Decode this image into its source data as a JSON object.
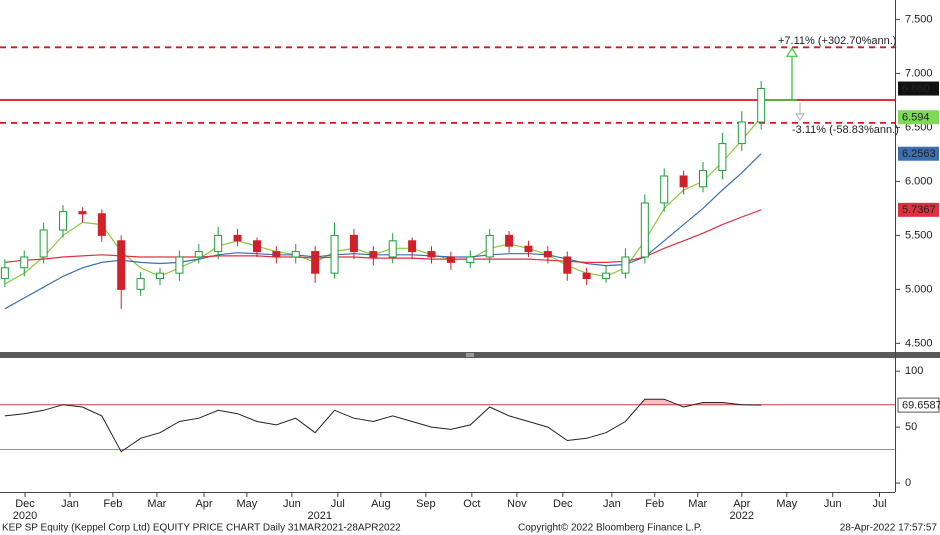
{
  "chart_data": [
    {
      "type": "candlestick",
      "x": [
        0,
        1,
        2,
        3,
        4,
        5,
        6,
        7,
        8,
        9,
        10,
        11,
        12,
        13,
        14,
        15,
        16,
        17,
        18,
        19,
        20,
        21,
        22,
        23,
        24,
        25,
        26,
        27,
        28,
        29,
        30,
        31,
        32,
        33,
        34,
        35,
        36,
        37,
        38,
        39
      ],
      "xlim": [
        -0.25,
        45.9
      ],
      "ylim": [
        4.42,
        7.68
      ],
      "yticks": [
        {
          "value": 4.5,
          "label": "4.500"
        },
        {
          "value": 5,
          "label": "5.000"
        },
        {
          "value": 5.5,
          "label": "5.500"
        },
        {
          "value": 6,
          "label": "6.000"
        },
        {
          "value": 6.5,
          "label": "6.500"
        },
        {
          "value": 7,
          "label": "7.000"
        },
        {
          "value": 7.5,
          "label": "7.500"
        }
      ],
      "candles": {
        "open": [
          5.1,
          5.2,
          5.3,
          5.55,
          5.72,
          5.7,
          5.45,
          5.0,
          5.1,
          5.15,
          5.3,
          5.35,
          5.5,
          5.45,
          5.35,
          5.3,
          5.35,
          5.15,
          5.5,
          5.35,
          5.3,
          5.45,
          5.35,
          5.3,
          5.25,
          5.3,
          5.5,
          5.4,
          5.35,
          5.3,
          5.15,
          5.1,
          5.15,
          5.3,
          5.8,
          6.05,
          5.95,
          6.1,
          6.35,
          6.55
        ],
        "high": [
          5.28,
          5.36,
          5.62,
          5.78,
          5.76,
          5.74,
          5.5,
          5.16,
          5.2,
          5.36,
          5.42,
          5.58,
          5.56,
          5.48,
          5.4,
          5.42,
          5.4,
          5.62,
          5.56,
          5.4,
          5.52,
          5.48,
          5.4,
          5.35,
          5.36,
          5.56,
          5.54,
          5.45,
          5.4,
          5.35,
          5.2,
          5.22,
          5.38,
          5.88,
          6.12,
          6.1,
          6.18,
          6.45,
          6.65,
          6.93
        ],
        "low": [
          5.02,
          5.12,
          5.24,
          5.48,
          5.62,
          5.44,
          4.82,
          4.94,
          5.04,
          5.08,
          5.24,
          5.28,
          5.4,
          5.3,
          5.24,
          5.24,
          5.06,
          5.1,
          5.28,
          5.22,
          5.24,
          5.28,
          5.24,
          5.18,
          5.2,
          5.24,
          5.34,
          5.3,
          5.24,
          5.08,
          5.04,
          5.06,
          5.1,
          5.24,
          5.72,
          5.88,
          5.9,
          6.02,
          6.28,
          6.48
        ],
        "close": [
          5.2,
          5.3,
          5.55,
          5.72,
          5.7,
          5.5,
          5.0,
          5.1,
          5.15,
          5.3,
          5.35,
          5.5,
          5.45,
          5.35,
          5.3,
          5.35,
          5.15,
          5.5,
          5.35,
          5.3,
          5.45,
          5.35,
          5.3,
          5.25,
          5.3,
          5.5,
          5.4,
          5.35,
          5.3,
          5.15,
          5.1,
          5.15,
          5.3,
          5.8,
          6.05,
          5.95,
          6.1,
          6.35,
          6.55,
          6.86
        ],
        "up_color": "#1a9e3a",
        "down_color": "#d0202a",
        "last_label": "6.860",
        "label_color": "#111",
        "label_text_color": "#fff"
      },
      "series": [
        {
          "color": "#8cc63f",
          "label_color": "#7ed957",
          "label_text_color": "#000",
          "last_label": "6.594",
          "values": [
            5.05,
            5.15,
            5.3,
            5.5,
            5.62,
            5.6,
            5.35,
            5.2,
            5.12,
            5.2,
            5.28,
            5.4,
            5.45,
            5.4,
            5.35,
            5.32,
            5.25,
            5.35,
            5.38,
            5.32,
            5.38,
            5.38,
            5.32,
            5.28,
            5.28,
            5.38,
            5.42,
            5.38,
            5.32,
            5.22,
            5.15,
            5.12,
            5.2,
            5.45,
            5.75,
            5.92,
            6.0,
            6.18,
            6.38,
            6.594
          ]
        },
        {
          "color": "#3a6fb0",
          "label_color": "#3a6fb0",
          "label_text_color": "#fff",
          "last_label": "6.2563",
          "values": [
            4.82,
            4.92,
            5.02,
            5.12,
            5.2,
            5.25,
            5.27,
            5.25,
            5.24,
            5.25,
            5.28,
            5.32,
            5.34,
            5.33,
            5.32,
            5.32,
            5.3,
            5.32,
            5.33,
            5.32,
            5.32,
            5.32,
            5.31,
            5.3,
            5.3,
            5.32,
            5.33,
            5.33,
            5.32,
            5.28,
            5.24,
            5.22,
            5.23,
            5.3,
            5.45,
            5.6,
            5.75,
            5.92,
            6.08,
            6.2563
          ]
        },
        {
          "color": "#e03040",
          "label_color": "#e03040",
          "label_text_color": "#fff",
          "last_label": "5.7367",
          "values": [
            5.25,
            5.27,
            5.28,
            5.3,
            5.31,
            5.32,
            5.31,
            5.3,
            5.3,
            5.3,
            5.3,
            5.31,
            5.31,
            5.31,
            5.3,
            5.3,
            5.29,
            5.3,
            5.3,
            5.29,
            5.29,
            5.29,
            5.28,
            5.28,
            5.28,
            5.28,
            5.28,
            5.28,
            5.27,
            5.26,
            5.25,
            5.25,
            5.26,
            5.3,
            5.38,
            5.45,
            5.52,
            5.6,
            5.67,
            5.7367
          ]
        }
      ],
      "hlines": [
        {
          "value": 7.242,
          "style": "dashed"
        },
        {
          "value": 6.754,
          "style": "solid"
        },
        {
          "value": 6.542,
          "style": "dashed"
        }
      ],
      "hline_color": "#e01020",
      "annotations": [
        {
          "text": "+7.11% (+302.70%ann.)",
          "color": "#3ec43e"
        },
        {
          "text": "-3.11% (-58.83%ann.)",
          "color": "#aaaaaa"
        }
      ]
    },
    {
      "type": "line",
      "x": [
        0,
        1,
        2,
        3,
        4,
        5,
        6,
        7,
        8,
        9,
        10,
        11,
        12,
        13,
        14,
        15,
        16,
        17,
        18,
        19,
        20,
        21,
        22,
        23,
        24,
        25,
        26,
        27,
        28,
        29,
        30,
        31,
        32,
        33,
        34,
        35,
        36,
        37,
        38,
        39
      ],
      "xlim": [
        -0.25,
        45.9
      ],
      "ylim": [
        -8,
        110
      ],
      "yticks": [
        0,
        50,
        100
      ],
      "series": [
        {
          "color": "#222222",
          "last_label": "69.6587",
          "values": [
            60,
            62,
            65,
            70,
            68,
            60,
            28,
            40,
            45,
            55,
            58,
            65,
            62,
            55,
            52,
            58,
            45,
            65,
            58,
            55,
            60,
            55,
            50,
            48,
            52,
            68,
            60,
            55,
            50,
            38,
            40,
            45,
            55,
            75,
            75,
            68,
            72,
            72,
            70,
            69.6587
          ]
        }
      ],
      "hlines": [
        {
          "value": 70,
          "color": "#d04040"
        },
        {
          "value": 30,
          "color": "#50c050"
        }
      ],
      "overbought_fill": "#f4c0c0",
      "xticks": [
        {
          "value": 1.04,
          "label": "Dec"
        },
        {
          "value": 3.36,
          "label": "Jan"
        },
        {
          "value": 5.57,
          "label": "Feb"
        },
        {
          "value": 7.84,
          "label": "Mar"
        },
        {
          "value": 10.27,
          "label": "Apr"
        },
        {
          "value": 12.48,
          "label": "May"
        },
        {
          "value": 14.8,
          "label": "Jun"
        },
        {
          "value": 17.17,
          "label": "Jul"
        },
        {
          "value": 19.39,
          "label": "Aug"
        },
        {
          "value": 21.71,
          "label": "Sep"
        },
        {
          "value": 24.08,
          "label": "Oct"
        },
        {
          "value": 26.4,
          "label": "Nov"
        },
        {
          "value": 28.77,
          "label": "Dec"
        },
        {
          "value": 31.3,
          "label": "Jan"
        },
        {
          "value": 33.51,
          "label": "Feb"
        },
        {
          "value": 35.73,
          "label": "Mar"
        },
        {
          "value": 38.0,
          "label": "Apr"
        },
        {
          "value": 40.32,
          "label": "May"
        },
        {
          "value": 42.69,
          "label": "Jun"
        },
        {
          "value": 45.1,
          "label": "Jul"
        }
      ],
      "year_ticks": [
        {
          "value": 1.04,
          "label": "2020"
        },
        {
          "value": 16.24,
          "label": "2021"
        },
        {
          "value": 38.0,
          "label": "2022"
        }
      ]
    }
  ],
  "footer": {
    "left": "KEP SP Equity (Keppel Corp Ltd) EQUITY PRICE CHART  Daily 31MAR2021-28APR2022",
    "center": "Copyright© 2022 Bloomberg Finance L.P.",
    "right": "28-Apr-2022 17:57:57"
  }
}
